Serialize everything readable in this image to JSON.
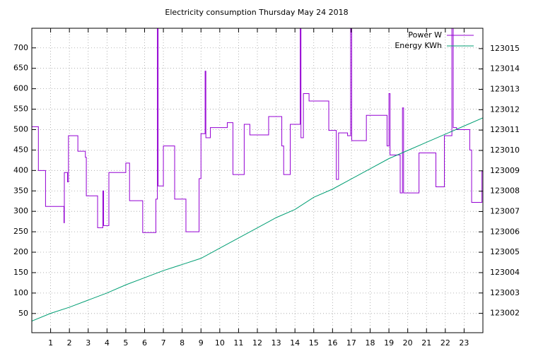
{
  "chart_data": {
    "type": "line",
    "title": "Electricity consumption Thursday May 24 2018",
    "xlim": [
      0,
      24
    ],
    "xticks": [
      1,
      2,
      3,
      4,
      5,
      6,
      7,
      8,
      9,
      10,
      11,
      12,
      13,
      14,
      15,
      16,
      17,
      18,
      19,
      20,
      21,
      22,
      23
    ],
    "ylim": [
      3,
      748
    ],
    "yticks": [
      50,
      100,
      150,
      200,
      250,
      300,
      350,
      400,
      450,
      500,
      550,
      600,
      650,
      700
    ],
    "y2lim": [
      123001.05,
      123016
    ],
    "y2ticks": [
      123002,
      123003,
      123004,
      123005,
      123006,
      123007,
      123008,
      123009,
      123010,
      123011,
      123012,
      123013,
      123014,
      123015
    ],
    "grid": true,
    "legend": "top-right",
    "series": [
      {
        "name": "Power W",
        "color": "#9400d3",
        "x": [
          0,
          0.35,
          0.35,
          0.73,
          0.73,
          1.71,
          1.71,
          1.73,
          1.73,
          1.9,
          1.9,
          1.95,
          1.95,
          2.45,
          2.45,
          2.85,
          2.85,
          2.9,
          2.9,
          3.5,
          3.5,
          3.78,
          3.78,
          3.82,
          3.82,
          4.1,
          4.1,
          5,
          5,
          5.2,
          5.2,
          5.9,
          5.9,
          6.6,
          6.6,
          6.68,
          6.68,
          6.72,
          6.72,
          7,
          7,
          7.6,
          7.6,
          8.2,
          8.2,
          8.9,
          8.9,
          9,
          9,
          9.22,
          9.22,
          9.26,
          9.26,
          9.5,
          9.5,
          10.4,
          10.4,
          10.7,
          10.7,
          11.3,
          11.3,
          11.6,
          11.6,
          12.6,
          12.6,
          13.3,
          13.3,
          13.4,
          13.4,
          13.75,
          13.75,
          14.28,
          14.28,
          14.32,
          14.32,
          14.45,
          14.45,
          14.75,
          14.75,
          15.8,
          15.8,
          16.2,
          16.2,
          16.32,
          16.32,
          16.8,
          16.8,
          16.96,
          16.96,
          17.02,
          17.02,
          17.8,
          17.8,
          18.9,
          18.9,
          19,
          19,
          19.06,
          19.06,
          19.6,
          19.6,
          19.72,
          19.72,
          19.78,
          19.78,
          20.6,
          20.6,
          21.5,
          21.5,
          21.95,
          21.95,
          22.35,
          22.35,
          22.42,
          22.42,
          22.6,
          22.6,
          23.3,
          23.3,
          23.4,
          23.4,
          23.95,
          23.95,
          24
        ],
        "values": [
          507,
          507,
          400,
          400,
          312,
          312,
          272,
          272,
          395,
          395,
          372,
          372,
          485,
          485,
          447,
          447,
          432,
          432,
          338,
          338,
          260,
          260,
          350,
          350,
          265,
          265,
          395,
          395,
          418,
          418,
          326,
          326,
          248,
          248,
          330,
          330,
          760,
          760,
          362,
          362,
          460,
          460,
          330,
          330,
          250,
          250,
          380,
          380,
          490,
          490,
          643,
          643,
          480,
          480,
          505,
          505,
          517,
          517,
          390,
          390,
          513,
          513,
          487,
          487,
          532,
          532,
          460,
          460,
          390,
          390,
          513,
          513,
          760,
          760,
          480,
          480,
          588,
          588,
          570,
          570,
          498,
          498,
          378,
          378,
          492,
          492,
          485,
          485,
          760,
          760,
          473,
          473,
          535,
          535,
          460,
          460,
          588,
          588,
          438,
          438,
          345,
          345,
          553,
          553,
          345,
          345,
          443,
          443,
          360,
          360,
          485,
          485,
          760,
          760,
          505,
          505,
          500,
          500,
          450,
          450,
          322,
          322,
          397,
          397
        ]
      },
      {
        "name": "Energy KWh",
        "color": "#009e73",
        "axis": "y2",
        "x": [
          0,
          1,
          2,
          3,
          4,
          5,
          6,
          7,
          8,
          9,
          10,
          11,
          12,
          13,
          14,
          15,
          16,
          17,
          18,
          19,
          20,
          21,
          22,
          23,
          24
        ],
        "values": [
          123001.62,
          123002.0,
          123002.3,
          123002.65,
          123003.0,
          123003.4,
          123003.75,
          123004.1,
          123004.4,
          123004.7,
          123005.2,
          123005.7,
          123006.2,
          123006.7,
          123007.1,
          123007.7,
          123008.1,
          123008.6,
          123009.1,
          123009.6,
          123010.0,
          123010.4,
          123010.8,
          123011.2,
          123011.6
        ]
      }
    ]
  }
}
